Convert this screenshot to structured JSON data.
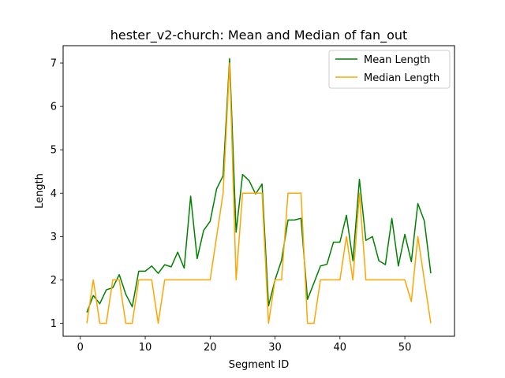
{
  "chart_data": {
    "type": "line",
    "title": "hester_v2-church: Mean and Median of fan_out",
    "xlabel": "Segment ID",
    "ylabel": "Length",
    "xlim": [
      -2.65,
      57.65
    ],
    "ylim": [
      0.7,
      7.4
    ],
    "xticks": [
      0,
      10,
      20,
      30,
      40,
      50
    ],
    "yticks": [
      1,
      2,
      3,
      4,
      5,
      6,
      7
    ],
    "grid": false,
    "legend_position": "top-right",
    "x": [
      1,
      2,
      3,
      4,
      5,
      6,
      7,
      8,
      9,
      10,
      11,
      12,
      13,
      14,
      15,
      16,
      17,
      18,
      19,
      20,
      21,
      22,
      23,
      24,
      25,
      26,
      27,
      28,
      29,
      30,
      31,
      32,
      33,
      34,
      35,
      36,
      37,
      38,
      39,
      40,
      41,
      42,
      43,
      44,
      45,
      46,
      47,
      48,
      49,
      50,
      51,
      52,
      53,
      54
    ],
    "series": [
      {
        "name": "Mean Length",
        "color": "#008000",
        "values": [
          1.25,
          1.64,
          1.45,
          1.77,
          1.82,
          2.12,
          1.67,
          1.38,
          2.2,
          2.2,
          2.32,
          2.15,
          2.35,
          2.3,
          2.64,
          2.27,
          3.93,
          2.49,
          3.14,
          3.35,
          4.1,
          4.4,
          7.1,
          3.1,
          4.43,
          4.29,
          3.98,
          4.21,
          1.4,
          2.0,
          2.45,
          3.38,
          3.38,
          3.42,
          1.55,
          1.93,
          2.32,
          2.36,
          2.87,
          2.87,
          3.49,
          2.44,
          4.32,
          2.91,
          3.0,
          2.44,
          2.35,
          3.42,
          2.32,
          3.05,
          2.42,
          3.76,
          3.36,
          2.15
        ]
      },
      {
        "name": "Median Length",
        "color": "#FFA500",
        "values": [
          1,
          2,
          1,
          1,
          2,
          2,
          1,
          1,
          2,
          2,
          2,
          1,
          2,
          2,
          2,
          2,
          2,
          2,
          2,
          2,
          3,
          4,
          7,
          2,
          4,
          4,
          4,
          4,
          1,
          2,
          2,
          4,
          4,
          4,
          1,
          1,
          2,
          2,
          2,
          2,
          3,
          2,
          4,
          2,
          2,
          2,
          2,
          2,
          2,
          2,
          1.5,
          3,
          2,
          1
        ]
      }
    ]
  }
}
